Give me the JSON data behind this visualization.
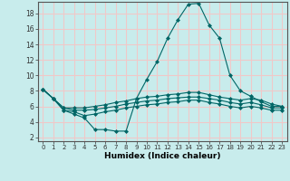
{
  "xlabel": "Humidex (Indice chaleur)",
  "background_color": "#c8ecec",
  "grid_color": "#f0c8c8",
  "line_color": "#006666",
  "xlim": [
    -0.5,
    23.5
  ],
  "ylim": [
    1.5,
    19.5
  ],
  "yticks": [
    2,
    4,
    6,
    8,
    10,
    12,
    14,
    16,
    18
  ],
  "xticks": [
    0,
    1,
    2,
    3,
    4,
    5,
    6,
    7,
    8,
    9,
    10,
    11,
    12,
    13,
    14,
    15,
    16,
    17,
    18,
    19,
    20,
    21,
    22,
    23
  ],
  "series": [
    [
      8.2,
      7.0,
      5.5,
      5.0,
      4.5,
      3.0,
      3.0,
      2.8,
      2.8,
      7.0,
      9.5,
      11.8,
      14.8,
      17.2,
      19.2,
      19.3,
      16.5,
      14.8,
      10.0,
      8.0,
      7.3,
      6.6,
      6.0,
      6.0
    ],
    [
      8.2,
      7.0,
      5.8,
      5.8,
      5.8,
      6.0,
      6.2,
      6.5,
      6.7,
      7.0,
      7.2,
      7.3,
      7.5,
      7.6,
      7.8,
      7.8,
      7.5,
      7.2,
      7.0,
      6.8,
      7.0,
      6.8,
      6.3,
      6.0
    ],
    [
      8.2,
      7.0,
      5.8,
      5.5,
      5.5,
      5.6,
      5.8,
      6.0,
      6.3,
      6.5,
      6.7,
      6.8,
      7.0,
      7.1,
      7.2,
      7.2,
      7.0,
      6.8,
      6.5,
      6.3,
      6.5,
      6.2,
      5.8,
      5.8
    ],
    [
      8.2,
      7.0,
      5.5,
      5.3,
      4.8,
      5.0,
      5.3,
      5.5,
      5.8,
      6.0,
      6.2,
      6.3,
      6.5,
      6.6,
      6.8,
      6.8,
      6.5,
      6.3,
      6.0,
      5.8,
      6.0,
      5.8,
      5.5,
      5.5
    ]
  ]
}
